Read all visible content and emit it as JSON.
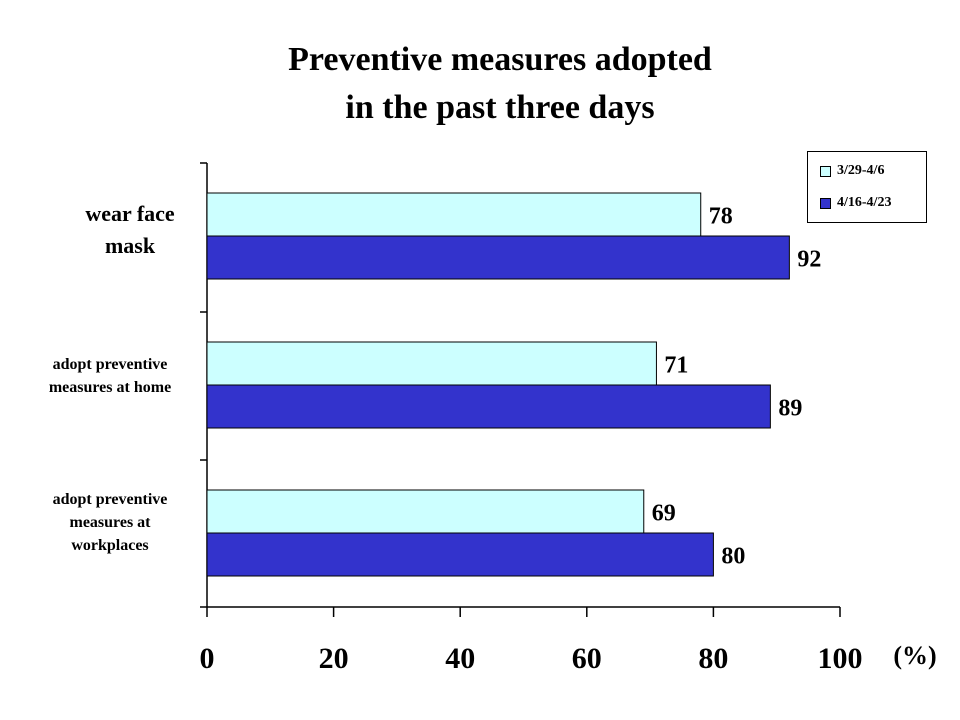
{
  "chart_data": {
    "type": "bar",
    "orientation": "horizontal",
    "title": [
      "Preventive measures adopted",
      "in the past three days"
    ],
    "categories": [
      "wear face mask",
      "adopt preventive measures at home",
      "adopt preventive measures at workplaces"
    ],
    "category_lines": [
      [
        "wear face",
        "mask"
      ],
      [
        "adopt preventive",
        "measures at home"
      ],
      [
        "adopt preventive",
        "measures at",
        "workplaces"
      ]
    ],
    "series": [
      {
        "name": "3/29-4/6",
        "values": [
          78,
          71,
          69
        ],
        "color": "#ccffff"
      },
      {
        "name": "4/16-4/23",
        "values": [
          92,
          89,
          80
        ],
        "color": "#3333cc"
      }
    ],
    "xlim": [
      0,
      100
    ],
    "xticks": [
      "0",
      "20",
      "40",
      "60",
      "80",
      "100"
    ],
    "unit": "(%)",
    "grid": false,
    "legend": "top-right"
  }
}
